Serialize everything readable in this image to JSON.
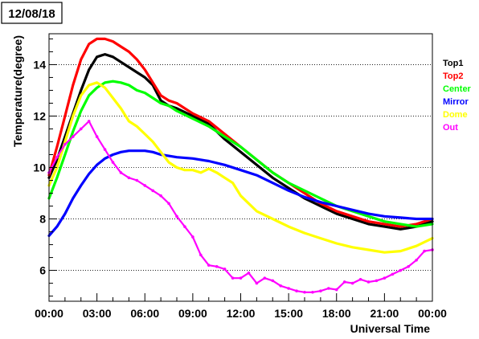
{
  "chart_data": {
    "type": "line",
    "title": "12/08/18",
    "xlabel": "Universal Time",
    "ylabel": "Temperature(degree)",
    "xlim": [
      0,
      24
    ],
    "ylim": [
      4.8,
      15.2
    ],
    "x_ticks": [
      {
        "value": 0,
        "label": "00:00"
      },
      {
        "value": 3,
        "label": "03:00"
      },
      {
        "value": 6,
        "label": "06:00"
      },
      {
        "value": 9,
        "label": "09:00"
      },
      {
        "value": 12,
        "label": "12:00"
      },
      {
        "value": 15,
        "label": "15:00"
      },
      {
        "value": 18,
        "label": "18:00"
      },
      {
        "value": 21,
        "label": "21:00"
      },
      {
        "value": 24,
        "label": "00:00"
      }
    ],
    "y_ticks": [
      {
        "value": 6,
        "label": "6"
      },
      {
        "value": 8,
        "label": "8"
      },
      {
        "value": 10,
        "label": "10"
      },
      {
        "value": 12,
        "label": "12"
      },
      {
        "value": 14,
        "label": "14"
      }
    ],
    "grid": "horizontal dotted",
    "legend_position": "right",
    "series": [
      {
        "name": "Top1",
        "color": "#000000",
        "x": [
          0,
          0.5,
          1,
          1.5,
          2,
          2.5,
          3,
          3.5,
          4,
          4.5,
          5,
          5.5,
          6,
          6.5,
          7,
          7.5,
          8,
          9,
          10,
          11,
          12,
          13,
          14,
          15,
          16,
          17,
          18,
          19,
          20,
          21,
          22,
          23,
          24
        ],
        "values": [
          9.6,
          10.3,
          11.2,
          12.1,
          13.0,
          13.8,
          14.3,
          14.4,
          14.3,
          14.1,
          13.9,
          13.7,
          13.5,
          13.2,
          12.6,
          12.4,
          12.3,
          12.0,
          11.7,
          11.1,
          10.6,
          10.1,
          9.6,
          9.2,
          8.8,
          8.5,
          8.2,
          8.0,
          7.8,
          7.7,
          7.6,
          7.7,
          7.9
        ]
      },
      {
        "name": "Top2",
        "color": "#ff0000",
        "x": [
          0,
          0.5,
          1,
          1.5,
          2,
          2.5,
          3,
          3.5,
          4,
          4.5,
          5,
          5.5,
          6,
          6.5,
          7,
          7.5,
          8,
          9,
          10,
          11,
          12,
          13,
          14,
          15,
          16,
          17,
          18,
          19,
          20,
          21,
          22,
          23,
          24
        ],
        "values": [
          9.7,
          10.8,
          12.0,
          13.2,
          14.2,
          14.8,
          15.0,
          15.0,
          14.9,
          14.7,
          14.5,
          14.2,
          13.8,
          13.3,
          12.8,
          12.6,
          12.5,
          12.1,
          11.8,
          11.3,
          10.8,
          10.3,
          9.8,
          9.4,
          9.0,
          8.6,
          8.3,
          8.1,
          7.9,
          7.8,
          7.7,
          7.8,
          8.0
        ]
      },
      {
        "name": "Center",
        "color": "#00ff00",
        "x": [
          0,
          0.5,
          1,
          1.5,
          2,
          2.5,
          3,
          3.5,
          4,
          4.5,
          5,
          5.5,
          6,
          6.5,
          7,
          7.5,
          8,
          9,
          10,
          11,
          12,
          13,
          14,
          15,
          16,
          17,
          18,
          19,
          20,
          21,
          22,
          23,
          24
        ],
        "values": [
          8.8,
          9.6,
          10.5,
          11.4,
          12.2,
          12.8,
          13.1,
          13.3,
          13.35,
          13.3,
          13.2,
          13.0,
          12.9,
          12.7,
          12.5,
          12.4,
          12.2,
          11.9,
          11.6,
          11.2,
          10.8,
          10.3,
          9.8,
          9.4,
          9.1,
          8.8,
          8.5,
          8.3,
          8.1,
          7.9,
          7.8,
          7.7,
          7.8
        ]
      },
      {
        "name": "Mirror",
        "color": "#0000ff",
        "x": [
          0,
          0.5,
          1,
          1.5,
          2,
          2.5,
          3,
          3.5,
          4,
          4.5,
          5,
          5.5,
          6,
          6.5,
          7,
          7.5,
          8,
          9,
          10,
          11,
          12,
          13,
          14,
          15,
          16,
          17,
          18,
          19,
          20,
          21,
          22,
          23,
          24
        ],
        "values": [
          7.35,
          7.7,
          8.2,
          8.8,
          9.3,
          9.75,
          10.1,
          10.35,
          10.5,
          10.6,
          10.65,
          10.65,
          10.65,
          10.6,
          10.5,
          10.45,
          10.4,
          10.35,
          10.25,
          10.1,
          9.9,
          9.7,
          9.4,
          9.1,
          8.85,
          8.65,
          8.5,
          8.35,
          8.2,
          8.1,
          8.05,
          8.0,
          8.0
        ]
      },
      {
        "name": "Dome",
        "color": "#ffff00",
        "x": [
          0,
          0.5,
          1,
          1.5,
          2,
          2.5,
          3,
          3.5,
          4,
          4.5,
          5,
          5.5,
          6,
          6.5,
          7,
          7.5,
          8,
          8.5,
          9,
          9.5,
          10,
          10.5,
          11,
          11.5,
          12,
          13,
          14,
          15,
          16,
          17,
          18,
          19,
          20,
          21,
          22,
          23,
          24
        ],
        "values": [
          9.3,
          10.0,
          11.0,
          12.0,
          12.8,
          13.2,
          13.3,
          13.1,
          12.7,
          12.3,
          11.8,
          11.6,
          11.3,
          11.0,
          10.6,
          10.2,
          10.0,
          9.9,
          9.9,
          9.8,
          9.95,
          9.8,
          9.6,
          9.4,
          8.9,
          8.3,
          8.0,
          7.7,
          7.45,
          7.25,
          7.05,
          6.9,
          6.8,
          6.7,
          6.75,
          6.95,
          7.25
        ]
      },
      {
        "name": "Out",
        "color": "#ff00ff",
        "x": [
          0,
          0.5,
          1,
          1.5,
          2,
          2.5,
          3,
          3.5,
          4,
          4.5,
          5,
          5.5,
          6,
          6.5,
          7,
          7.5,
          8,
          8.5,
          9,
          9.5,
          10,
          10.5,
          11,
          11.5,
          12,
          12.5,
          13,
          13.5,
          14,
          14.5,
          15,
          15.5,
          16,
          16.5,
          17,
          17.5,
          18,
          18.5,
          19,
          19.5,
          20,
          20.5,
          21,
          21.5,
          22,
          22.5,
          23,
          23.5,
          24
        ],
        "values": [
          9.8,
          10.4,
          10.9,
          11.2,
          11.5,
          11.8,
          11.2,
          10.7,
          10.2,
          9.8,
          9.6,
          9.5,
          9.3,
          9.1,
          8.9,
          8.6,
          8.1,
          7.7,
          7.3,
          6.6,
          6.2,
          6.15,
          6.05,
          5.7,
          5.7,
          5.9,
          5.5,
          5.7,
          5.6,
          5.4,
          5.3,
          5.2,
          5.15,
          5.15,
          5.2,
          5.3,
          5.25,
          5.55,
          5.5,
          5.65,
          5.55,
          5.6,
          5.7,
          5.85,
          6.0,
          6.15,
          6.4,
          6.75,
          6.8
        ]
      }
    ]
  }
}
